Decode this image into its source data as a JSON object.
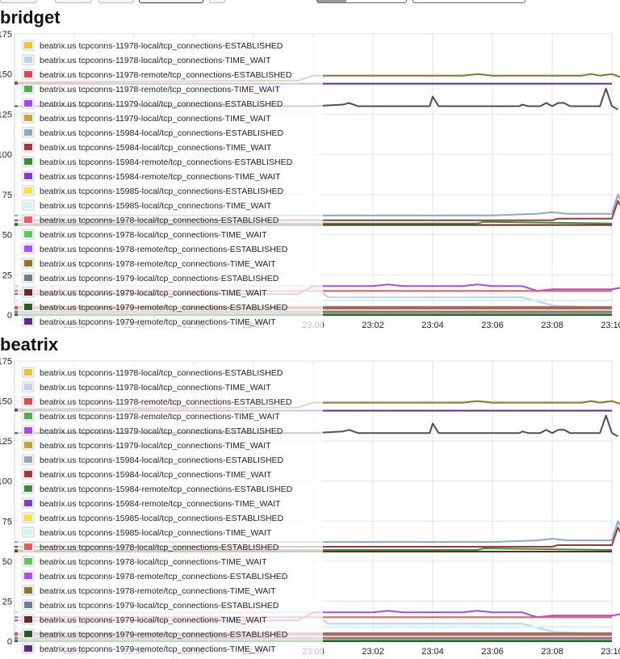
{
  "toolbar": {
    "buttons": [
      {
        "label": ""
      },
      {
        "label": ""
      },
      {
        "label": ""
      },
      {
        "label": ""
      },
      {
        "label": ""
      }
    ],
    "inputs": [
      {
        "value": ""
      },
      {
        "value": ""
      }
    ]
  },
  "chart_data": [
    {
      "title": "bridget",
      "type": "line",
      "xlabel": "",
      "ylabel": "",
      "ylim": [
        0,
        175
      ],
      "yticks": [
        "0",
        "25",
        "50",
        "75",
        "100",
        "125",
        "150",
        "175"
      ],
      "xlim": [
        "22:50",
        "23:10"
      ],
      "xticks": [
        "22:52",
        "22:54",
        "22:56",
        "22:58",
        "23:00",
        "23:02",
        "23:04",
        "23:06",
        "23:08",
        "23:10"
      ],
      "grid": true,
      "legend_position": "top-left",
      "series": [
        {
          "name": "beatrix.us tcpconns-11978-local/tcp_connections-ESTABLISHED",
          "color": "#eec236",
          "x": [
            "22:50",
            "23:00",
            "23:05",
            "23:06",
            "23:10"
          ],
          "y": [
            1,
            1,
            1,
            1,
            1
          ]
        },
        {
          "name": "beatrix.us tcpconns-11978-local/tcp_connections-TIME_WAIT",
          "color": "#b8d4ee",
          "x": [
            "22:50",
            "23:00",
            "23:00.5",
            "23:07",
            "23:08",
            "23:10"
          ],
          "y": [
            18,
            18,
            11,
            11,
            6,
            4
          ]
        },
        {
          "name": "beatrix.us tcpconns-11978-remote/tcp_connections-ESTABLISHED",
          "color": "#da4c4c",
          "x": [
            "22:50",
            "23:00",
            "23:10"
          ],
          "y": [
            5,
            5,
            5
          ]
        },
        {
          "name": "beatrix.us tcpconns-11978-remote/tcp_connections-TIME_WAIT",
          "color": "#4db04d",
          "x": [
            "22:50",
            "23:06",
            "23:08",
            "23:10"
          ],
          "y": [
            1,
            0,
            2,
            0
          ]
        },
        {
          "name": "beatrix.us tcpconns-11979-local/tcp_connections-ESTABLISHED",
          "color": "#a548ec",
          "x": [
            "22:50",
            "22:59.5",
            "23:00",
            "23:02",
            "23:02.5",
            "23:03",
            "23:05",
            "23:05.5",
            "23:06",
            "23:07",
            "23:07.5",
            "23:08",
            "23:10",
            "23:10.3"
          ],
          "y": [
            13,
            13,
            18,
            18,
            19,
            18,
            18,
            19,
            18,
            18,
            15,
            16,
            16,
            17
          ]
        },
        {
          "name": "beatrix.us tcpconns-11979-local/tcp_connections-TIME_WAIT",
          "color": "#c8a33a",
          "x": [
            "22:50",
            "23:10"
          ],
          "y": [
            2,
            2
          ]
        },
        {
          "name": "beatrix.us tcpconns-15984-local/tcp_connections-ESTABLISHED",
          "color": "#8ea7c2",
          "x": [
            "22:50",
            "23:00",
            "23:06",
            "23:07.5",
            "23:08",
            "23:08.5",
            "23:09.5",
            "23:10",
            "23:10.2",
            "23:10.5"
          ],
          "y": [
            62,
            62,
            62,
            63,
            64,
            63,
            63,
            63,
            75,
            63
          ]
        },
        {
          "name": "beatrix.us tcpconns-15984-local/tcp_connections-TIME_WAIT",
          "color": "#a03939",
          "x": [
            "22:50",
            "23:08",
            "23:08.2",
            "23:10",
            "23:10.2",
            "23:10.5"
          ],
          "y": [
            59,
            59,
            60,
            60,
            71,
            61
          ]
        },
        {
          "name": "beatrix.us tcpconns-15984-remote/tcp_connections-ESTABLISHED",
          "color": "#3a8c3a",
          "x": [
            "22:50",
            "23:05.5",
            "23:05.7",
            "23:10"
          ],
          "y": [
            57,
            57,
            58,
            57
          ]
        },
        {
          "name": "beatrix.us tcpconns-15984-remote/tcp_connections-TIME_WAIT",
          "color": "#7b3fc3",
          "x": [
            "22:50",
            "23:10"
          ],
          "y": [
            2,
            2
          ]
        },
        {
          "name": "beatrix.us tcpconns-15985-local/tcp_connections-ESTABLISHED",
          "color": "#fbe140",
          "x": [
            "22:50",
            "23:10"
          ],
          "y": [
            3,
            3
          ]
        },
        {
          "name": "beatrix.us tcpconns-15985-local/tcp_connections-TIME_WAIT",
          "color": "#d2f3f8",
          "x": [
            "22:50",
            "23:10"
          ],
          "y": [
            9,
            9
          ]
        },
        {
          "name": "beatrix.us tcpconns-1978-local/tcp_connections-ESTABLISHED",
          "color": "#f05a5a",
          "x": [
            "22:50",
            "23:00",
            "23:10"
          ],
          "y": [
            15,
            15,
            15
          ]
        },
        {
          "name": "beatrix.us tcpconns-1978-local/tcp_connections-TIME_WAIT",
          "color": "#5ac85a",
          "x": [
            "22:50",
            "23:10"
          ],
          "y": [
            1,
            1
          ]
        },
        {
          "name": "beatrix.us tcpconns-1978-remote/tcp_connections-ESTABLISHED",
          "color": "#b34cf0",
          "x": [
            "22:50",
            "23:10"
          ],
          "y": [
            2,
            2
          ]
        },
        {
          "name": "beatrix.us tcpconns-1978-remote/tcp_connections-TIME_WAIT",
          "color": "#8b7726",
          "x": [
            "22:50",
            "22:59.5",
            "23:00",
            "23:05",
            "23:05.5",
            "23:06",
            "23:09",
            "23:09.3",
            "23:09.6",
            "23:10",
            "23:10.3",
            "23:10.5"
          ],
          "y": [
            145,
            146,
            149,
            149,
            150,
            149,
            149,
            150,
            149,
            150,
            148,
            149
          ]
        },
        {
          "name": "beatrix.us tcpconns-1979-local/tcp_connections-ESTABLISHED",
          "color": "#6a7f8f",
          "x": [
            "22:50",
            "23:10"
          ],
          "y": [
            4,
            4
          ]
        },
        {
          "name": "beatrix.us tcpconns-1979-local/tcp_connections-TIME_WAIT",
          "color": "#6e2727",
          "x": [
            "22:50",
            "23:10"
          ],
          "y": [
            56,
            56
          ]
        },
        {
          "name": "beatrix.us tcpconns-1979-remote/tcp_connections-ESTABLISHED",
          "color": "#2d5a2d",
          "x": [
            "22:50",
            "23:10"
          ],
          "y": [
            0,
            0
          ]
        },
        {
          "name": "beatrix.us tcpconns-1979-remote/tcp_connections-TIME_WAIT",
          "color": "#5a2a8c",
          "x": [
            "22:50",
            "23:10"
          ],
          "y": [
            144,
            144
          ]
        },
        {
          "name": "",
          "color": "#4a4f66",
          "x": [
            "22:50",
            "23:00",
            "23:01",
            "23:01.2",
            "23:01.5",
            "23:03.9",
            "23:04",
            "23:04.2",
            "23:06.9",
            "23:07",
            "23:07.2",
            "23:07.6",
            "23:07.8",
            "23:08",
            "23:08.2",
            "23:08.4",
            "23:08.6",
            "23:09.6",
            "23:09.8",
            "23:10",
            "23:10.2"
          ],
          "y": [
            130,
            130,
            131,
            132,
            130,
            130,
            136,
            130,
            130,
            131,
            130,
            130,
            132,
            130,
            132,
            132,
            130,
            130,
            141,
            130,
            128
          ]
        }
      ]
    },
    {
      "title": "beatrix",
      "type": "line",
      "xlabel": "",
      "ylabel": "",
      "ylim": [
        0,
        175
      ],
      "yticks": [
        "0",
        "25",
        "50",
        "75",
        "100",
        "125",
        "150",
        "175"
      ],
      "xlim": [
        "22:50",
        "23:10"
      ],
      "xticks": [
        "22:52",
        "22:54",
        "22:56",
        "22:58",
        "23:00",
        "23:02",
        "23:04",
        "23:06",
        "23:08",
        "23:10"
      ],
      "grid": true,
      "legend_position": "top-left",
      "series": [
        {
          "name": "beatrix.us tcpconns-11978-local/tcp_connections-ESTABLISHED",
          "color": "#eec236",
          "x": [
            "22:50",
            "23:10"
          ],
          "y": [
            1,
            1
          ]
        },
        {
          "name": "beatrix.us tcpconns-11978-local/tcp_connections-TIME_WAIT",
          "color": "#b8d4ee",
          "x": [
            "22:50",
            "23:00",
            "23:00.5",
            "23:07",
            "23:08",
            "23:10"
          ],
          "y": [
            18,
            18,
            11,
            11,
            6,
            4
          ]
        },
        {
          "name": "beatrix.us tcpconns-11978-remote/tcp_connections-ESTABLISHED",
          "color": "#da4c4c",
          "x": [
            "22:50",
            "23:10"
          ],
          "y": [
            5,
            5
          ]
        },
        {
          "name": "beatrix.us tcpconns-11978-remote/tcp_connections-TIME_WAIT",
          "color": "#4db04d",
          "x": [
            "22:50",
            "23:06",
            "23:08",
            "23:10"
          ],
          "y": [
            1,
            0,
            2,
            0
          ]
        },
        {
          "name": "beatrix.us tcpconns-11979-local/tcp_connections-ESTABLISHED",
          "color": "#a548ec",
          "x": [
            "22:50",
            "22:59.5",
            "23:00",
            "23:02",
            "23:02.5",
            "23:03",
            "23:05",
            "23:05.5",
            "23:06",
            "23:07",
            "23:07.5",
            "23:08",
            "23:10",
            "23:10.3"
          ],
          "y": [
            13,
            13,
            18,
            18,
            19,
            18,
            18,
            19,
            18,
            18,
            15,
            16,
            16,
            17
          ]
        },
        {
          "name": "beatrix.us tcpconns-11979-local/tcp_connections-TIME_WAIT",
          "color": "#c8a33a",
          "x": [
            "22:50",
            "23:10"
          ],
          "y": [
            2,
            2
          ]
        },
        {
          "name": "beatrix.us tcpconns-15984-local/tcp_connections-ESTABLISHED",
          "color": "#8ea7c2",
          "x": [
            "22:50",
            "23:00",
            "23:06",
            "23:07.5",
            "23:08",
            "23:08.5",
            "23:09.5",
            "23:10",
            "23:10.2",
            "23:10.5"
          ],
          "y": [
            62,
            62,
            62,
            63,
            64,
            63,
            63,
            63,
            75,
            63
          ]
        },
        {
          "name": "beatrix.us tcpconns-15984-local/tcp_connections-TIME_WAIT",
          "color": "#a03939",
          "x": [
            "22:50",
            "23:08",
            "23:08.2",
            "23:10",
            "23:10.2",
            "23:10.5"
          ],
          "y": [
            59,
            59,
            60,
            60,
            71,
            61
          ]
        },
        {
          "name": "beatrix.us tcpconns-15984-remote/tcp_connections-ESTABLISHED",
          "color": "#3a8c3a",
          "x": [
            "22:50",
            "23:05.5",
            "23:05.7",
            "23:10"
          ],
          "y": [
            57,
            57,
            58,
            57
          ]
        },
        {
          "name": "beatrix.us tcpconns-15984-remote/tcp_connections-TIME_WAIT",
          "color": "#7b3fc3",
          "x": [
            "22:50",
            "23:10"
          ],
          "y": [
            2,
            2
          ]
        },
        {
          "name": "beatrix.us tcpconns-15985-local/tcp_connections-ESTABLISHED",
          "color": "#fbe140",
          "x": [
            "22:50",
            "23:10"
          ],
          "y": [
            3,
            3
          ]
        },
        {
          "name": "beatrix.us tcpconns-15985-local/tcp_connections-TIME_WAIT",
          "color": "#d2f3f8",
          "x": [
            "22:50",
            "23:10"
          ],
          "y": [
            9,
            9
          ]
        },
        {
          "name": "beatrix.us tcpconns-1978-local/tcp_connections-ESTABLISHED",
          "color": "#f05a5a",
          "x": [
            "22:50",
            "23:10"
          ],
          "y": [
            15,
            15
          ]
        },
        {
          "name": "beatrix.us tcpconns-1978-local/tcp_connections-TIME_WAIT",
          "color": "#5ac85a",
          "x": [
            "22:50",
            "23:10"
          ],
          "y": [
            1,
            1
          ]
        },
        {
          "name": "beatrix.us tcpconns-1978-remote/tcp_connections-ESTABLISHED",
          "color": "#b34cf0",
          "x": [
            "22:50",
            "23:10"
          ],
          "y": [
            2,
            2
          ]
        },
        {
          "name": "beatrix.us tcpconns-1978-remote/tcp_connections-TIME_WAIT",
          "color": "#8b7726",
          "x": [
            "22:50",
            "22:59.5",
            "23:00",
            "23:05",
            "23:05.5",
            "23:06",
            "23:09",
            "23:09.3",
            "23:09.6",
            "23:10",
            "23:10.3",
            "23:10.5"
          ],
          "y": [
            145,
            146,
            149,
            149,
            150,
            149,
            149,
            150,
            149,
            150,
            148,
            149
          ]
        },
        {
          "name": "beatrix.us tcpconns-1979-local/tcp_connections-ESTABLISHED",
          "color": "#6a7f8f",
          "x": [
            "22:50",
            "23:10"
          ],
          "y": [
            4,
            4
          ]
        },
        {
          "name": "beatrix.us tcpconns-1979-local/tcp_connections-TIME_WAIT",
          "color": "#6e2727",
          "x": [
            "22:50",
            "23:10"
          ],
          "y": [
            56,
            56
          ]
        },
        {
          "name": "beatrix.us tcpconns-1979-remote/tcp_connections-ESTABLISHED",
          "color": "#2d5a2d",
          "x": [
            "22:50",
            "23:10"
          ],
          "y": [
            0,
            0
          ]
        },
        {
          "name": "beatrix.us tcpconns-1979-remote/tcp_connections-TIME_WAIT",
          "color": "#5a2a8c",
          "x": [
            "22:50",
            "23:10"
          ],
          "y": [
            144,
            144
          ]
        },
        {
          "name": "",
          "color": "#4a4f66",
          "x": [
            "22:50",
            "23:00",
            "23:01",
            "23:01.2",
            "23:01.5",
            "23:03.9",
            "23:04",
            "23:04.2",
            "23:06.9",
            "23:07",
            "23:07.2",
            "23:07.6",
            "23:07.8",
            "23:08",
            "23:08.2",
            "23:08.4",
            "23:08.6",
            "23:09.6",
            "23:09.8",
            "23:10",
            "23:10.2"
          ],
          "y": [
            130,
            130,
            131,
            132,
            130,
            130,
            136,
            130,
            130,
            131,
            130,
            130,
            132,
            130,
            132,
            132,
            130,
            130,
            141,
            130,
            128
          ]
        }
      ]
    }
  ]
}
